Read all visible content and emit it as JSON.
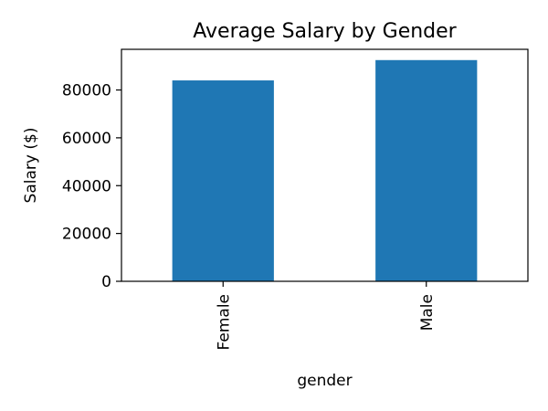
{
  "chart_data": {
    "type": "bar",
    "title": "Average Salary by Gender",
    "xlabel": "gender",
    "ylabel": "Salary ($)",
    "categories": [
      "Female",
      "Male"
    ],
    "values": [
      84000,
      92500
    ],
    "yticks": [
      0,
      20000,
      40000,
      60000,
      80000
    ],
    "ylim": [
      0,
      97000
    ],
    "bar_color": "#1f77b4",
    "grid": false,
    "legend": "none"
  }
}
